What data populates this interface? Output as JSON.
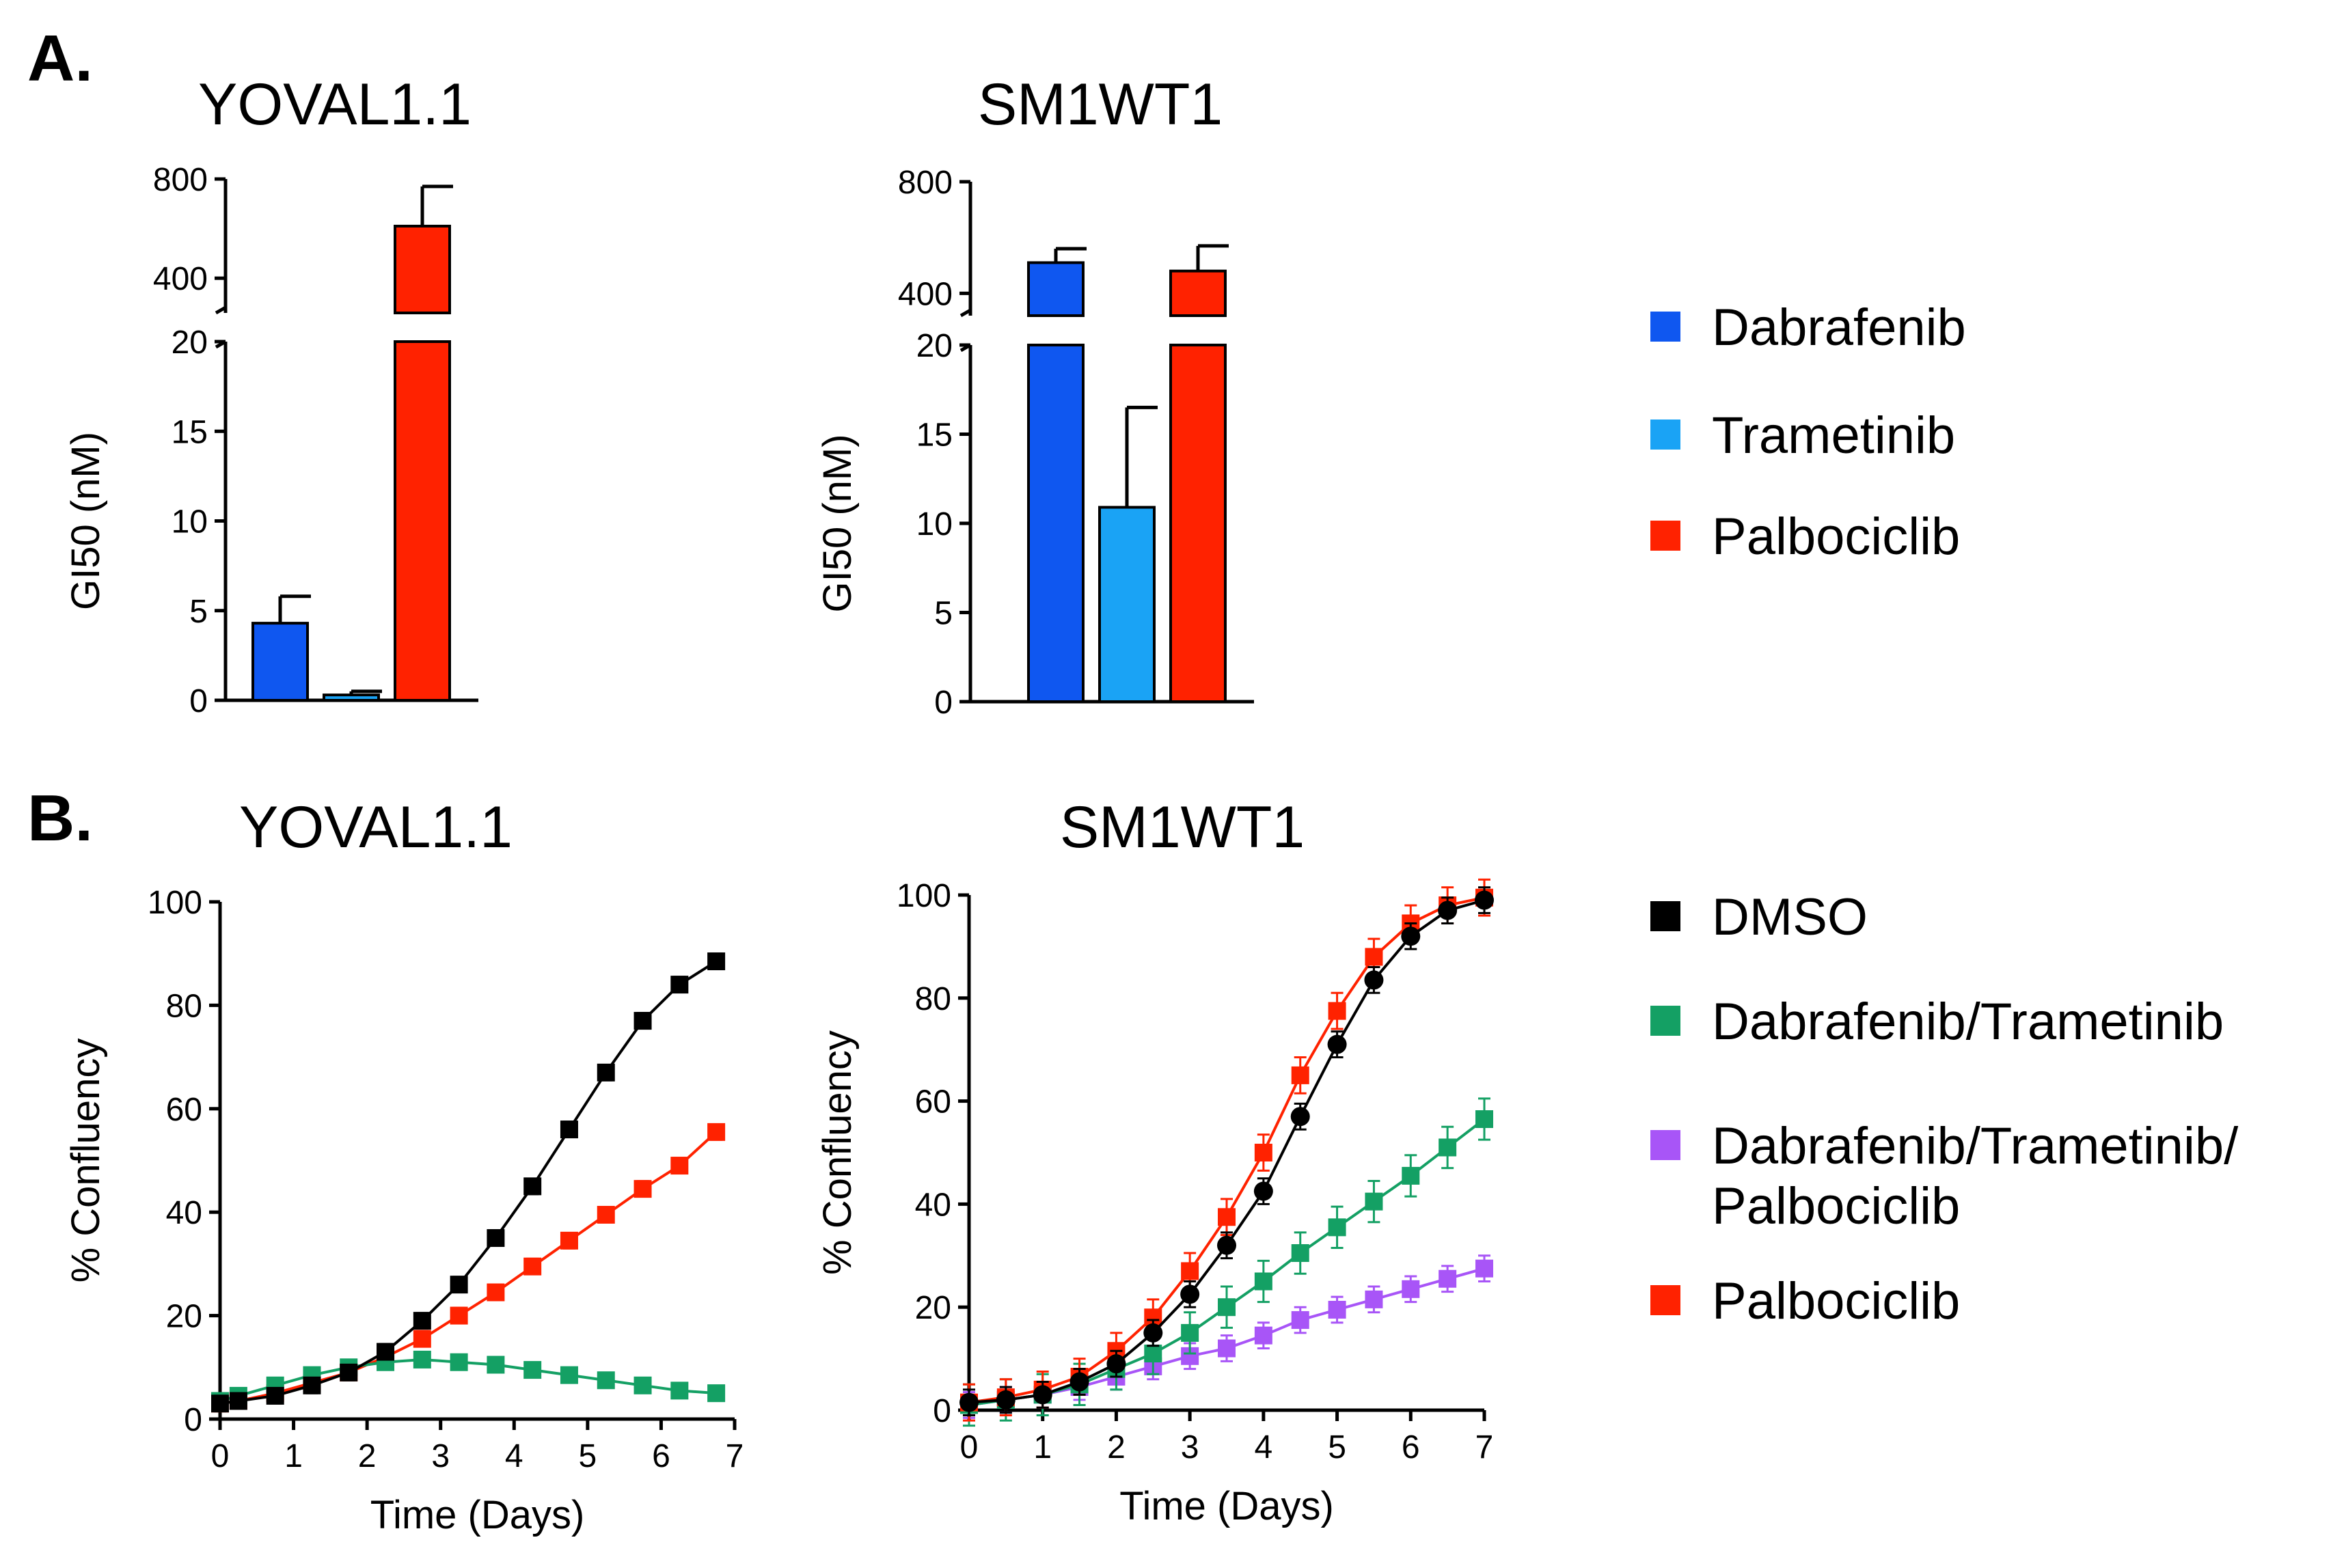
{
  "panel_labels": [
    "A.",
    "B."
  ],
  "legends": {
    "gi50": [
      {
        "label": "Dabrafenib",
        "color": "#0f57f0"
      },
      {
        "label": "Trametinib",
        "color": "#1aa3f5"
      },
      {
        "label": "Palbociclib",
        "color": "#ff2200"
      }
    ],
    "growth": [
      {
        "label": "DMSO",
        "color": "#000000"
      },
      {
        "label": "Dabrafenib/Trametinib",
        "color": "#14a064"
      },
      {
        "label": "Dabrafenib/Trametinib/",
        "label2": "Palbociclib",
        "color": "#a855f7"
      },
      {
        "label": "Palbociclib",
        "color": "#ff2200"
      }
    ]
  },
  "chart_data": [
    {
      "id": "A-left",
      "type": "bar",
      "title": "YOVAL1.1",
      "ylabel": "GI50 (nM)",
      "xlabel": "",
      "categories": [
        "Dabrafenib",
        "Trametinib",
        "Palbociclib"
      ],
      "values": [
        4.3,
        0.3,
        610
      ],
      "errors": [
        1.5,
        0.2,
        160
      ],
      "colors": [
        "#0f57f0",
        "#1aa3f5",
        "#ff2200"
      ],
      "lower_range": [
        0,
        20
      ],
      "upper_range": [
        260,
        800
      ],
      "lower_ticks": [
        "0",
        "5",
        "10",
        "15",
        "20"
      ],
      "upper_ticks": [
        "400",
        "800"
      ]
    },
    {
      "id": "A-right",
      "type": "bar",
      "title": "SM1WT1",
      "ylabel": "GI50 (nM)",
      "xlabel": "",
      "categories": [
        "Dabrafenib",
        "Trametinib",
        "Palbociclib"
      ],
      "values": [
        510,
        10.9,
        480
      ],
      "errors": [
        50,
        5.6,
        90
      ],
      "colors": [
        "#0f57f0",
        "#1aa3f5",
        "#ff2200"
      ],
      "lower_range": [
        0,
        20
      ],
      "upper_range": [
        320,
        800
      ],
      "lower_ticks": [
        "0",
        "5",
        "10",
        "15",
        "20"
      ],
      "upper_ticks": [
        "400",
        "800"
      ]
    },
    {
      "id": "B-left",
      "type": "line",
      "title": "YOVAL1.1",
      "xlabel": "Time (Days)",
      "ylabel": "% Confluency",
      "xlim": [
        0,
        7
      ],
      "ylim": [
        0,
        100
      ],
      "xticks": [
        "0",
        "1",
        "2",
        "3",
        "4",
        "5",
        "6",
        "7"
      ],
      "yticks": [
        "0",
        "20",
        "40",
        "60",
        "80",
        "100"
      ],
      "x": [
        0,
        0.25,
        0.75,
        1.25,
        1.75,
        2.25,
        2.75,
        3.25,
        3.75,
        4.25,
        4.75,
        5.25,
        5.75,
        6.25,
        6.75
      ],
      "series": [
        {
          "name": "Palbociclib",
          "color": "#ff2200",
          "marker": "square",
          "values": [
            3,
            3.5,
            5,
            7,
            9,
            12,
            15.5,
            20,
            24.5,
            29.5,
            34.5,
            39.5,
            44.5,
            49,
            55.5
          ],
          "err": 1.5
        },
        {
          "name": "Dabrafenib/Trametinib",
          "color": "#14a064",
          "marker": "square",
          "values": [
            3.5,
            4.5,
            6.5,
            8.5,
            10,
            11,
            11.5,
            11,
            10.5,
            9.5,
            8.5,
            7.5,
            6.5,
            5.5,
            5
          ],
          "err": 1
        },
        {
          "name": "DMSO",
          "color": "#000000",
          "marker": "square",
          "values": [
            3,
            3.5,
            4.5,
            6.5,
            9,
            13,
            19,
            26,
            35,
            45,
            56,
            67,
            77,
            84,
            88.5
          ],
          "err": 1.5
        }
      ]
    },
    {
      "id": "B-right",
      "type": "line",
      "title": "SM1WT1",
      "xlabel": "Time (Days)",
      "ylabel": "% Confluency",
      "xlim": [
        0,
        7
      ],
      "ylim": [
        0,
        100
      ],
      "xticks": [
        "0",
        "1",
        "2",
        "3",
        "4",
        "5",
        "6",
        "7"
      ],
      "yticks": [
        "0",
        "20",
        "40",
        "60",
        "80",
        "100"
      ],
      "x": [
        0,
        0.5,
        1,
        1.5,
        2,
        2.5,
        3,
        3.5,
        4,
        4.5,
        5,
        5.5,
        6,
        6.5,
        7
      ],
      "series": [
        {
          "name": "Dabrafenib/Trametinib/Palbociclib",
          "color": "#a855f7",
          "marker": "square",
          "values": [
            1,
            2,
            3,
            4.5,
            6.5,
            8.5,
            10.5,
            12,
            14.5,
            17.5,
            19.5,
            21.5,
            23.5,
            25.5,
            27.5
          ],
          "err": 2.5
        },
        {
          "name": "Dabrafenib/Trametinib",
          "color": "#14a064",
          "marker": "square",
          "values": [
            1,
            2,
            3,
            5,
            8,
            11,
            15,
            20,
            25,
            30.5,
            35.5,
            40.5,
            45.5,
            51,
            56.5
          ],
          "err": 4
        },
        {
          "name": "Palbociclib",
          "color": "#ff2200",
          "marker": "square",
          "values": [
            1.5,
            2.5,
            4,
            6.5,
            11.5,
            18,
            27,
            37.5,
            50,
            65,
            77.5,
            88,
            94.5,
            98,
            99.5
          ],
          "err": 3.5
        },
        {
          "name": "DMSO",
          "color": "#000000",
          "marker": "circle",
          "values": [
            1.5,
            2,
            3,
            5.5,
            9,
            15,
            22.5,
            32,
            42.5,
            57,
            71,
            83.5,
            92,
            97,
            99
          ],
          "err": 2.5
        }
      ]
    }
  ]
}
